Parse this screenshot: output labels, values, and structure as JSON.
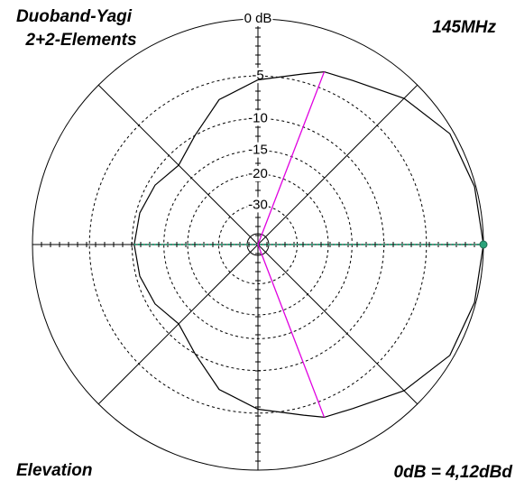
{
  "chart_data": {
    "type": "polar",
    "title": "Duoband-Yagi",
    "subtitle": "2+2-Elements",
    "frequency": "145MHz",
    "plane": "Elevation",
    "reference": "0dB = 4,12dBd",
    "scale": "arrl-log",
    "rticks": [
      {
        "value": 0,
        "label": "0 dB"
      },
      -5,
      -10,
      -15,
      -20,
      -30
    ],
    "x": [
      -180,
      -165,
      -150,
      -135,
      -120,
      -105,
      -90,
      -75,
      -69,
      -60,
      -45,
      -30,
      -15,
      0,
      15,
      30,
      45,
      60,
      69,
      75,
      90,
      105,
      120,
      135,
      150,
      165,
      180
    ],
    "series": [
      {
        "color": "#000000",
        "values": [
          -10.3,
          -10.5,
          -11,
          -12,
          -10,
          -7,
          -5.4,
          -4.2,
          -3.4,
          -3,
          -1.5,
          -0.3,
          -0.1,
          0,
          -0.1,
          -0.3,
          -1.5,
          -3,
          -3.4,
          -4.2,
          -5.4,
          -7,
          -10,
          -12,
          -11,
          -10.5,
          -10.3
        ]
      }
    ],
    "beam_lines": {
      "angles": [
        69,
        -69
      ],
      "values": [
        -3.4,
        -3.4
      ],
      "color": "#e000e0"
    },
    "max_marker": {
      "angle": 0,
      "value": 0,
      "color": "#2aa37a"
    }
  }
}
